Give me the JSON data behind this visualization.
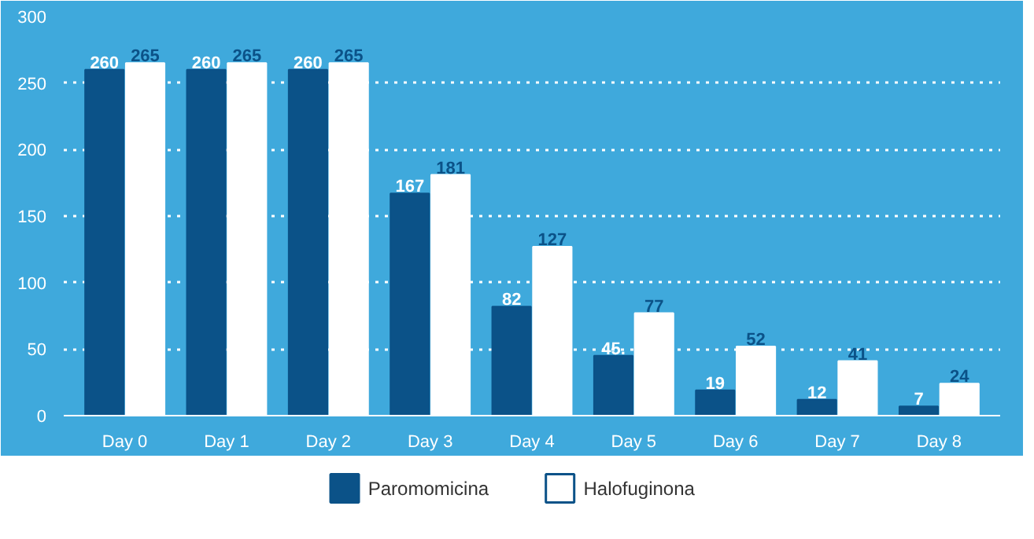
{
  "chart_data": {
    "type": "bar",
    "categories": [
      "Day 0",
      "Day 1",
      "Day 2",
      "Day 3",
      "Day 4",
      "Day 5",
      "Day 6",
      "Day 7",
      "Day 8"
    ],
    "series": [
      {
        "name": "Paromomicina",
        "color": "#0b5288",
        "values": [
          260,
          260,
          260,
          167,
          82,
          45,
          19,
          12,
          7
        ],
        "value_labels": [
          "260",
          "260",
          "260",
          "167",
          "82",
          "45.",
          "19",
          "12",
          "7"
        ]
      },
      {
        "name": "Halofuginona",
        "color": "#ffffff",
        "values": [
          265,
          265,
          265,
          181,
          127,
          77,
          52,
          41,
          24
        ],
        "value_labels": [
          "265",
          "265",
          "265",
          "181",
          "127",
          "77",
          "52",
          "41",
          "24"
        ]
      }
    ],
    "ylim": [
      0,
      300
    ],
    "yticks": [
      0,
      50,
      100,
      150,
      200,
      250,
      300
    ],
    "grid": "y",
    "legend": "bottom"
  }
}
